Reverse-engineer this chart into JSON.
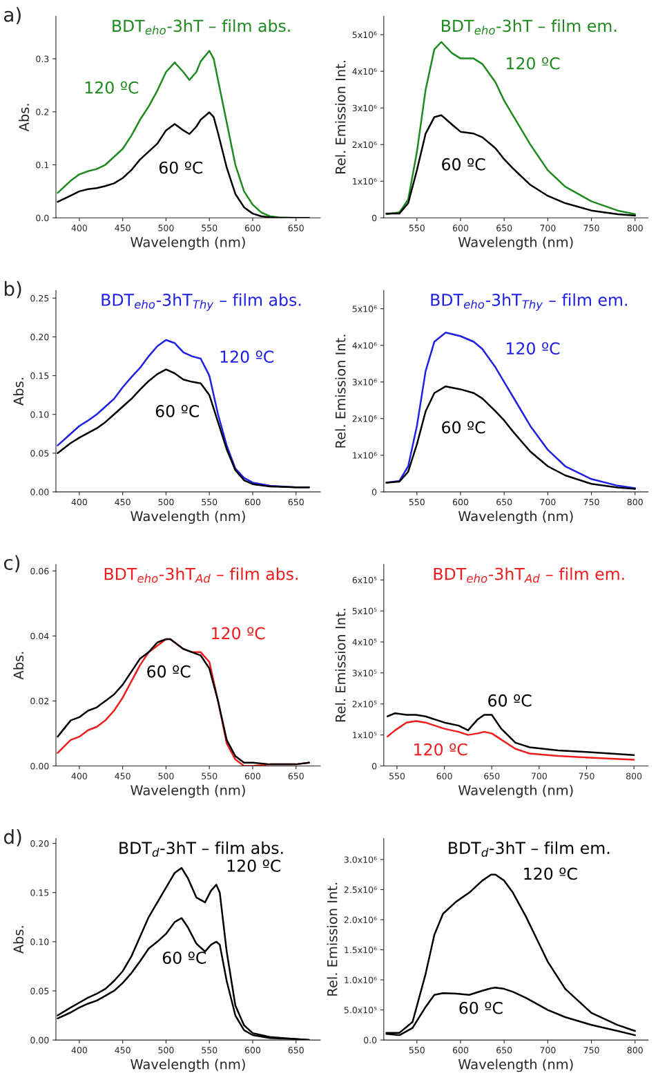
{
  "chart_data": [
    {
      "type": "line",
      "title": "BDT$_{eho}$-3hT – film abs.",
      "xlabel": "Wavelength (nm)",
      "ylabel": "Abs.",
      "xlim": [
        373,
        678
      ],
      "xticks": [
        400,
        450,
        500,
        550,
        600,
        650
      ],
      "ylim": [
        0,
        0.38
      ],
      "yticks": [
        {
          "value": 0,
          "label": "0.0"
        },
        0.1,
        0.2,
        0.3
      ],
      "annotations": [
        "a)"
      ],
      "series": [
        {
          "name": "120 ºC",
          "color": "#1e8a1e",
          "x": [
            375,
            390,
            400,
            410,
            420,
            430,
            440,
            450,
            460,
            470,
            480,
            490,
            500,
            510,
            520,
            527,
            535,
            540,
            550,
            555,
            560,
            570,
            580,
            590,
            600,
            610,
            620,
            630,
            650,
            665
          ],
          "values": [
            0.047,
            0.07,
            0.082,
            0.088,
            0.092,
            0.1,
            0.115,
            0.13,
            0.155,
            0.185,
            0.21,
            0.24,
            0.275,
            0.293,
            0.275,
            0.26,
            0.275,
            0.295,
            0.315,
            0.3,
            0.26,
            0.18,
            0.1,
            0.05,
            0.025,
            0.01,
            0.003,
            0.001,
            0,
            0
          ]
        },
        {
          "name": "60 ºC",
          "color": "#000000",
          "x": [
            375,
            390,
            400,
            410,
            420,
            430,
            440,
            450,
            460,
            470,
            480,
            490,
            500,
            510,
            520,
            527,
            535,
            540,
            550,
            555,
            560,
            570,
            580,
            590,
            600,
            610,
            620,
            630,
            650,
            665
          ],
          "values": [
            0.03,
            0.042,
            0.05,
            0.054,
            0.056,
            0.06,
            0.065,
            0.075,
            0.09,
            0.11,
            0.125,
            0.14,
            0.165,
            0.177,
            0.165,
            0.158,
            0.172,
            0.185,
            0.199,
            0.19,
            0.16,
            0.095,
            0.045,
            0.02,
            0.008,
            0.003,
            0.001,
            0,
            0,
            0
          ]
        }
      ]
    },
    {
      "type": "line",
      "title": "BDT$_{eho}$-3hT – film em.",
      "xlabel": "Wavelength (nm)",
      "ylabel": "Rel. Emission Int.",
      "xlim": [
        512,
        815
      ],
      "xticks": [
        550,
        600,
        650,
        700,
        750,
        800
      ],
      "ylim": [
        0,
        5500000
      ],
      "yticks": [
        0,
        {
          "value": 1000000,
          "label": "1x10⁶"
        },
        {
          "value": 2000000,
          "label": "2x10⁶"
        },
        {
          "value": 3000000,
          "label": "3x10⁶"
        },
        {
          "value": 4000000,
          "label": "4x10⁶"
        },
        {
          "value": 5000000,
          "label": "5x10⁶"
        }
      ],
      "series": [
        {
          "name": "120 ºC",
          "color": "#1e8a1e",
          "x": [
            515,
            530,
            540,
            550,
            560,
            570,
            578,
            590,
            600,
            615,
            625,
            640,
            650,
            660,
            680,
            700,
            720,
            750,
            780,
            800
          ],
          "values": [
            100000,
            150000,
            500000,
            1800000,
            3500000,
            4600000,
            4800000,
            4500000,
            4350000,
            4350000,
            4200000,
            3700000,
            3200000,
            2800000,
            2000000,
            1300000,
            850000,
            450000,
            200000,
            100000
          ]
        },
        {
          "name": "60 ºC",
          "color": "#000000",
          "x": [
            515,
            530,
            540,
            550,
            560,
            570,
            578,
            590,
            600,
            615,
            625,
            640,
            650,
            660,
            680,
            700,
            720,
            750,
            780,
            800
          ],
          "values": [
            120000,
            120000,
            400000,
            1300000,
            2300000,
            2750000,
            2800000,
            2550000,
            2350000,
            2300000,
            2200000,
            1900000,
            1600000,
            1350000,
            900000,
            600000,
            400000,
            200000,
            100000,
            60000
          ]
        }
      ]
    },
    {
      "type": "line",
      "title": "BDT$_{eho}$-3hT$_{Thy}$ – film abs.",
      "xlabel": "Wavelength (nm)",
      "ylabel": "Abs.",
      "xlim": [
        373,
        678
      ],
      "xticks": [
        400,
        450,
        500,
        550,
        600,
        650
      ],
      "ylim": [
        0,
        0.26
      ],
      "yticks": [
        {
          "value": 0,
          "label": "0.00"
        },
        0.05,
        {
          "value": 0.1,
          "label": "0.10"
        },
        0.15,
        {
          "value": 0.2,
          "label": "0.20"
        },
        0.25
      ],
      "annotations": [
        "b)"
      ],
      "series": [
        {
          "name": "120 ºC",
          "color": "#1f1fe6",
          "x": [
            375,
            390,
            400,
            410,
            420,
            430,
            440,
            450,
            460,
            470,
            480,
            490,
            500,
            510,
            520,
            530,
            540,
            550,
            560,
            570,
            580,
            590,
            600,
            620,
            650,
            665
          ],
          "values": [
            0.06,
            0.075,
            0.085,
            0.092,
            0.1,
            0.11,
            0.12,
            0.135,
            0.148,
            0.16,
            0.175,
            0.188,
            0.196,
            0.192,
            0.18,
            0.175,
            0.172,
            0.15,
            0.1,
            0.06,
            0.03,
            0.018,
            0.012,
            0.008,
            0.006,
            0.006
          ]
        },
        {
          "name": "60 ºC",
          "color": "#000000",
          "x": [
            375,
            390,
            400,
            410,
            420,
            430,
            440,
            450,
            460,
            470,
            480,
            490,
            500,
            510,
            520,
            530,
            540,
            550,
            560,
            570,
            580,
            590,
            600,
            620,
            650,
            665
          ],
          "values": [
            0.05,
            0.063,
            0.07,
            0.076,
            0.082,
            0.09,
            0.1,
            0.11,
            0.12,
            0.132,
            0.143,
            0.152,
            0.158,
            0.153,
            0.145,
            0.142,
            0.14,
            0.125,
            0.09,
            0.055,
            0.028,
            0.015,
            0.01,
            0.007,
            0.006,
            0.006
          ]
        }
      ]
    },
    {
      "type": "line",
      "title": "BDT$_{eho}$-3hT$_{Thy}$ – film em.",
      "xlabel": "Wavelength (nm)",
      "ylabel": "Rel. Emission Int.",
      "xlim": [
        512,
        815
      ],
      "xticks": [
        550,
        600,
        650,
        700,
        750,
        800
      ],
      "ylim": [
        0,
        5500000
      ],
      "yticks": [
        0,
        {
          "value": 1000000,
          "label": "1x10⁶"
        },
        {
          "value": 2000000,
          "label": "2x10⁶"
        },
        {
          "value": 3000000,
          "label": "3x10⁶"
        },
        {
          "value": 4000000,
          "label": "4x10⁶"
        },
        {
          "value": 5000000,
          "label": "5x10⁶"
        }
      ],
      "series": [
        {
          "name": "120 ºC",
          "color": "#1f1fe6",
          "x": [
            515,
            530,
            540,
            550,
            560,
            570,
            583,
            600,
            615,
            625,
            640,
            650,
            660,
            680,
            700,
            720,
            750,
            780,
            800
          ],
          "values": [
            250000,
            300000,
            700000,
            1800000,
            3300000,
            4100000,
            4350000,
            4250000,
            4100000,
            3900000,
            3400000,
            3000000,
            2600000,
            1800000,
            1150000,
            700000,
            350000,
            170000,
            100000
          ]
        },
        {
          "name": "60 ºC",
          "color": "#000000",
          "x": [
            515,
            530,
            540,
            550,
            560,
            570,
            583,
            600,
            615,
            625,
            640,
            650,
            660,
            680,
            700,
            720,
            750,
            780,
            800
          ],
          "values": [
            250000,
            280000,
            550000,
            1300000,
            2200000,
            2700000,
            2880000,
            2800000,
            2700000,
            2550000,
            2200000,
            1950000,
            1650000,
            1100000,
            700000,
            450000,
            220000,
            120000,
            80000
          ]
        }
      ]
    },
    {
      "type": "line",
      "title": "BDT$_{eho}$-3hT$_{Ad}$ – film abs.",
      "xlabel": "Wavelength (nm)",
      "ylabel": "Abs.",
      "xlim": [
        373,
        678
      ],
      "xticks": [
        400,
        450,
        500,
        550,
        600,
        650
      ],
      "ylim": [
        0,
        0.062
      ],
      "yticks": [
        {
          "value": 0,
          "label": "0.00"
        },
        {
          "value": 0.02,
          "label": "0.02"
        },
        {
          "value": 0.04,
          "label": "0.04"
        },
        {
          "value": 0.06,
          "label": "0.06"
        }
      ],
      "annotations": [
        "c)"
      ],
      "series": [
        {
          "name": "120 ºC",
          "color": "#ee1c1c",
          "x": [
            375,
            390,
            400,
            410,
            420,
            430,
            440,
            450,
            460,
            470,
            480,
            490,
            500,
            505,
            510,
            520,
            530,
            540,
            550,
            560,
            570,
            580,
            590,
            600,
            620,
            650,
            665
          ],
          "values": [
            0.004,
            0.008,
            0.009,
            0.011,
            0.012,
            0.014,
            0.017,
            0.021,
            0.026,
            0.031,
            0.035,
            0.037,
            0.039,
            0.039,
            0.038,
            0.036,
            0.035,
            0.035,
            0.032,
            0.02,
            0.007,
            0.002,
            0,
            0,
            0.0005,
            0.0005,
            0.001
          ]
        },
        {
          "name": "60 ºC",
          "color": "#000000",
          "x": [
            375,
            390,
            400,
            410,
            420,
            430,
            440,
            450,
            460,
            470,
            480,
            490,
            500,
            505,
            510,
            520,
            530,
            540,
            550,
            560,
            570,
            580,
            590,
            600,
            620,
            650,
            665
          ],
          "values": [
            0.009,
            0.014,
            0.015,
            0.017,
            0.018,
            0.02,
            0.022,
            0.025,
            0.029,
            0.033,
            0.035,
            0.038,
            0.039,
            0.039,
            0.038,
            0.036,
            0.035,
            0.034,
            0.03,
            0.02,
            0.008,
            0.003,
            0.001,
            0.001,
            0.0005,
            0.0005,
            0.001
          ]
        }
      ]
    },
    {
      "type": "line",
      "title": "BDT$_{eho}$-3hT$_{Ad}$ – film em.",
      "xlabel": "Wavelength (nm)",
      "ylabel": "Rel. Emission Int.",
      "xlim": [
        536,
        815
      ],
      "xticks": [
        550,
        600,
        650,
        700,
        750,
        800
      ],
      "ylim": [
        0,
        650000
      ],
      "yticks": [
        0,
        {
          "value": 100000,
          "label": "1x10⁵"
        },
        {
          "value": 200000,
          "label": "2x10⁵"
        },
        {
          "value": 300000,
          "label": "3x10⁵"
        },
        {
          "value": 400000,
          "label": "4x10⁵"
        },
        {
          "value": 500000,
          "label": "5x10⁵"
        },
        {
          "value": 600000,
          "label": "6x10⁵"
        }
      ],
      "series": [
        {
          "name": "120 ºC",
          "color": "#ee1c1c",
          "x": [
            540,
            548,
            560,
            570,
            580,
            600,
            615,
            625,
            635,
            642,
            650,
            660,
            675,
            690,
            720,
            750,
            800
          ],
          "values": [
            95000,
            115000,
            140000,
            145000,
            140000,
            120000,
            110000,
            100000,
            105000,
            110000,
            105000,
            85000,
            55000,
            40000,
            32000,
            27000,
            20000
          ]
        },
        {
          "name": "60 ºC",
          "color": "#000000",
          "x": [
            540,
            548,
            560,
            570,
            580,
            600,
            615,
            625,
            635,
            642,
            650,
            660,
            675,
            690,
            720,
            750,
            800
          ],
          "values": [
            160000,
            170000,
            165000,
            165000,
            160000,
            140000,
            130000,
            115000,
            150000,
            165000,
            165000,
            120000,
            75000,
            60000,
            50000,
            45000,
            35000
          ]
        }
      ]
    },
    {
      "type": "line",
      "title": "BDT$_{d}$-3hT – film abs.",
      "xlabel": "Wavelength (nm)",
      "ylabel": "Abs.",
      "xlim": [
        373,
        678
      ],
      "xticks": [
        400,
        450,
        500,
        550,
        600,
        650
      ],
      "ylim": [
        0,
        0.205
      ],
      "yticks": [
        {
          "value": 0,
          "label": "0.00"
        },
        0.05,
        {
          "value": 0.1,
          "label": "0.10"
        },
        0.15,
        {
          "value": 0.2,
          "label": "0.20"
        }
      ],
      "annotations": [
        "d)"
      ],
      "series": [
        {
          "name": "120 ºC",
          "color": "#000000",
          "x": [
            375,
            390,
            400,
            410,
            420,
            430,
            440,
            450,
            460,
            470,
            480,
            490,
            500,
            510,
            518,
            525,
            535,
            545,
            552,
            558,
            562,
            570,
            580,
            590,
            600,
            620,
            650,
            665
          ],
          "values": [
            0.025,
            0.033,
            0.038,
            0.043,
            0.047,
            0.052,
            0.06,
            0.07,
            0.085,
            0.105,
            0.125,
            0.14,
            0.155,
            0.17,
            0.175,
            0.165,
            0.145,
            0.14,
            0.152,
            0.158,
            0.15,
            0.09,
            0.035,
            0.015,
            0.007,
            0.003,
            0.001,
            0
          ]
        },
        {
          "name": "60 ºC",
          "color": "#000000",
          "x": [
            375,
            390,
            400,
            410,
            420,
            430,
            440,
            450,
            460,
            470,
            480,
            490,
            500,
            510,
            518,
            525,
            535,
            545,
            552,
            558,
            562,
            570,
            580,
            590,
            600,
            620,
            650,
            665
          ],
          "values": [
            0.022,
            0.028,
            0.033,
            0.037,
            0.04,
            0.045,
            0.05,
            0.058,
            0.068,
            0.08,
            0.093,
            0.1,
            0.108,
            0.12,
            0.124,
            0.115,
            0.098,
            0.09,
            0.097,
            0.1,
            0.097,
            0.06,
            0.025,
            0.01,
            0.005,
            0.002,
            0.001,
            0
          ]
        }
      ]
    },
    {
      "type": "line",
      "title": "BDT$_{d}$-3hT – film em.",
      "xlabel": "Wavelength (nm)",
      "ylabel": "Rel. Emission Int.",
      "xlim": [
        512,
        815
      ],
      "xticks": [
        550,
        600,
        650,
        700,
        750,
        800
      ],
      "ylim": [
        0,
        3350000
      ],
      "yticks": [
        {
          "value": 0,
          "label": "0.0"
        },
        {
          "value": 500000,
          "label": "5.0x10⁵"
        },
        {
          "value": 1000000,
          "label": "1.0x10⁶"
        },
        {
          "value": 1500000,
          "label": "1.5x10⁶"
        },
        {
          "value": 2000000,
          "label": "2.0x10⁶"
        },
        {
          "value": 2500000,
          "label": "2.5x10⁶"
        },
        {
          "value": 3000000,
          "label": "3.0x10⁶"
        }
      ],
      "series": [
        {
          "name": "120 ºC",
          "color": "#000000",
          "x": [
            515,
            530,
            545,
            560,
            570,
            580,
            595,
            610,
            625,
            635,
            640,
            650,
            660,
            675,
            690,
            700,
            720,
            750,
            780,
            800
          ],
          "values": [
            120000,
            120000,
            300000,
            1100000,
            1750000,
            2100000,
            2300000,
            2450000,
            2650000,
            2750000,
            2750000,
            2650000,
            2450000,
            2050000,
            1600000,
            1300000,
            850000,
            450000,
            250000,
            150000
          ]
        },
        {
          "name": "60 ºC",
          "color": "#000000",
          "x": [
            515,
            530,
            545,
            560,
            570,
            580,
            595,
            610,
            625,
            635,
            640,
            650,
            660,
            675,
            690,
            700,
            720,
            750,
            780,
            800
          ],
          "values": [
            100000,
            80000,
            200000,
            550000,
            750000,
            780000,
            770000,
            750000,
            820000,
            860000,
            870000,
            850000,
            800000,
            700000,
            580000,
            500000,
            380000,
            250000,
            150000,
            80000
          ]
        }
      ]
    }
  ]
}
